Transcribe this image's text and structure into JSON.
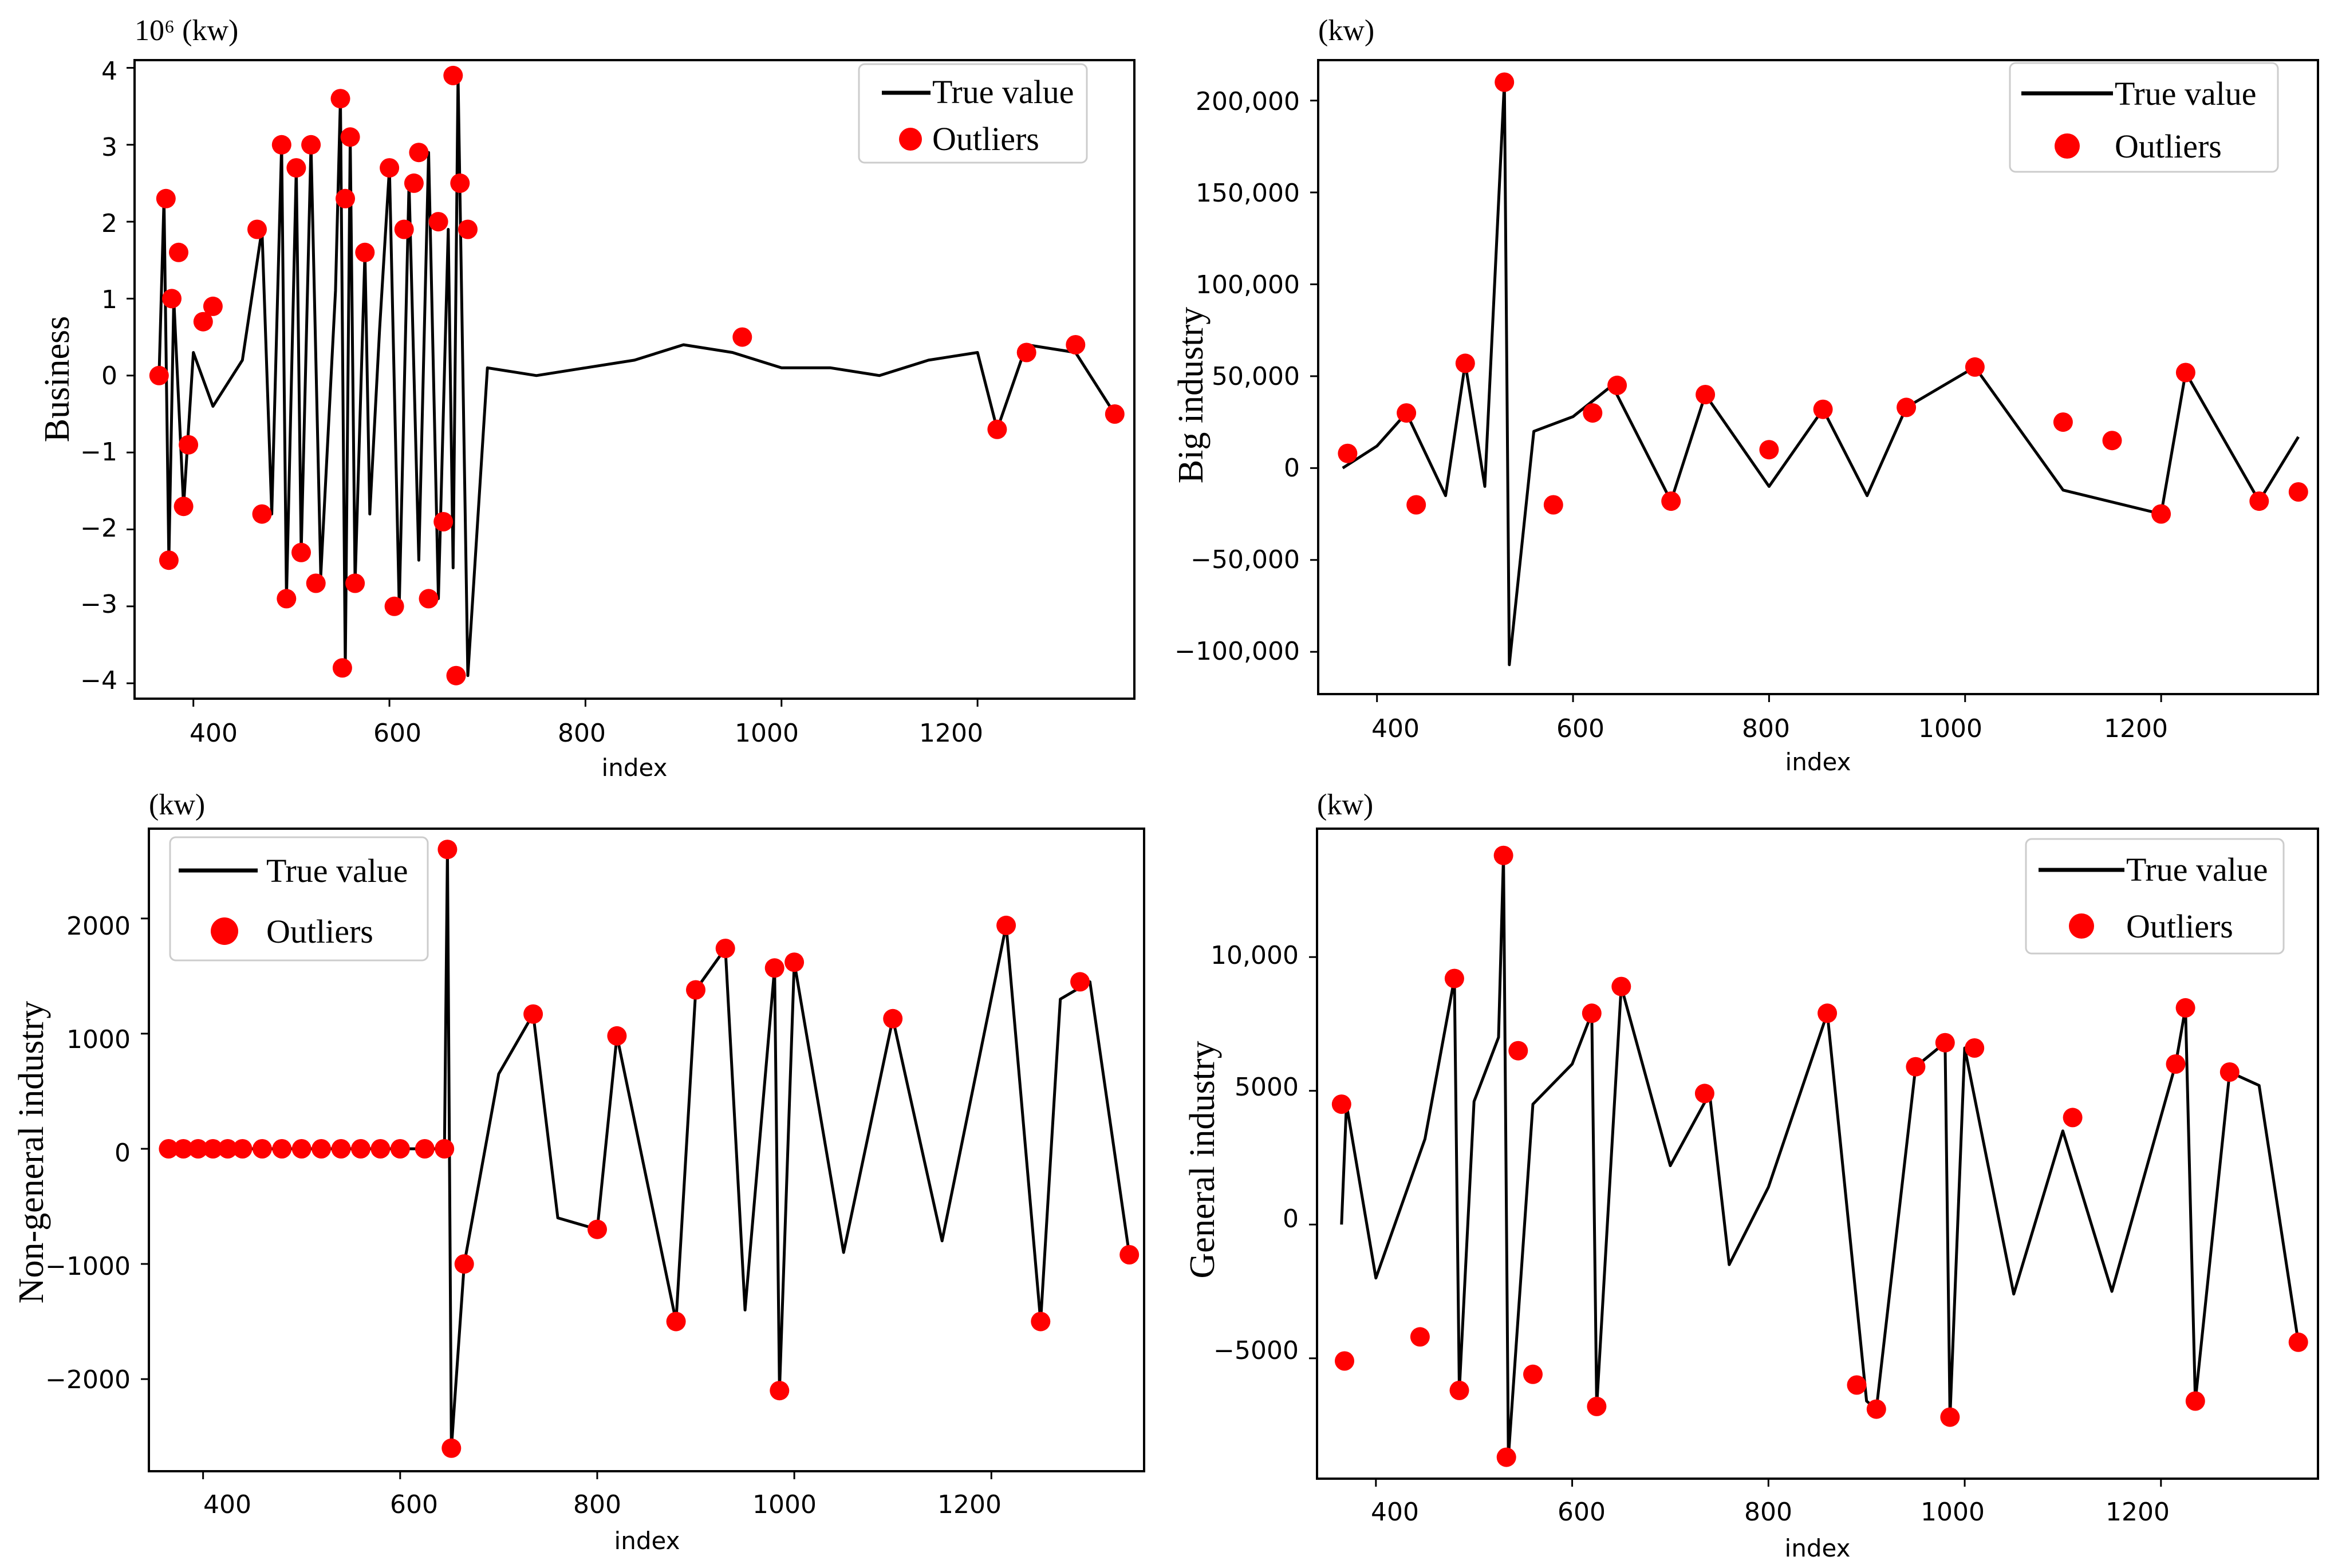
{
  "colors": {
    "line": "#000000",
    "outlier": "#ff0000",
    "axes": "#000000",
    "legend_border": "#cccccc"
  },
  "chart_data": [
    {
      "type": "line",
      "id": "business",
      "ylabel": "Business",
      "xlabel": "index",
      "unit_label": "10⁶ (kw)",
      "x_ticks": [
        "400",
        "600",
        "800",
        "1000",
        "1200"
      ],
      "y_ticks": [
        "−4",
        "−3",
        "−2",
        "−1",
        "0",
        "1",
        "2",
        "3",
        "4"
      ],
      "xlim": [
        340,
        1360
      ],
      "ylim": [
        -4.2,
        4.1
      ],
      "legend": {
        "line": "True value",
        "points": "Outliers",
        "position": "top-right"
      },
      "series": [
        {
          "name": "True value",
          "x": [
            365,
            370,
            375,
            380,
            390,
            400,
            420,
            450,
            470,
            480,
            490,
            495,
            505,
            510,
            520,
            530,
            545,
            550,
            555,
            560,
            565,
            575,
            580,
            590,
            600,
            610,
            620,
            630,
            640,
            650,
            660,
            665,
            670,
            680,
            700,
            750,
            800,
            850,
            900,
            950,
            1000,
            1050,
            1100,
            1150,
            1200,
            1220,
            1250,
            1300,
            1340
          ],
          "y": [
            0,
            2.3,
            -2.4,
            1.0,
            -1.7,
            0.3,
            -0.4,
            0.2,
            1.9,
            -1.8,
            3.0,
            -2.9,
            2.7,
            -2.3,
            3.0,
            -2.6,
            1.1,
            3.6,
            -3.8,
            3.1,
            -2.7,
            1.6,
            -1.8,
            0.6,
            2.7,
            -3.0,
            2.5,
            -2.4,
            2.9,
            -2.9,
            1.9,
            -2.5,
            3.9,
            -3.9,
            0.1,
            0.0,
            0.1,
            0.2,
            0.4,
            0.3,
            0.1,
            0.1,
            0.0,
            0.2,
            0.3,
            -0.7,
            0.4,
            0.3,
            -0.5
          ]
        },
        {
          "name": "Outliers",
          "x": [
            365,
            372,
            375,
            378,
            385,
            390,
            395,
            410,
            420,
            465,
            470,
            490,
            495,
            505,
            510,
            520,
            525,
            550,
            552,
            555,
            560,
            565,
            575,
            600,
            605,
            615,
            625,
            630,
            640,
            650,
            655,
            665,
            668,
            672,
            680,
            960,
            1220,
            1250,
            1300,
            1340
          ],
          "y": [
            0,
            2.3,
            -2.4,
            1.0,
            1.6,
            -1.7,
            -0.9,
            0.7,
            0.9,
            1.9,
            -1.8,
            3.0,
            -2.9,
            2.7,
            -2.3,
            3.0,
            -2.7,
            3.6,
            -3.8,
            2.3,
            3.1,
            -2.7,
            1.6,
            2.7,
            -3.0,
            1.9,
            2.5,
            2.9,
            -2.9,
            2.0,
            -1.9,
            3.9,
            -3.9,
            2.5,
            1.9,
            0.5,
            -0.7,
            0.3,
            0.4,
            -0.5
          ]
        }
      ]
    },
    {
      "type": "line",
      "id": "big-industry",
      "ylabel": "Big industry",
      "xlabel": "index",
      "unit_label": "(kw)",
      "x_ticks": [
        "400",
        "600",
        "800",
        "1000",
        "1200"
      ],
      "y_ticks": [
        "−100,000",
        "−50,000",
        "0",
        "50,000",
        "100,000",
        "150,000",
        "200,000"
      ],
      "xlim": [
        340,
        1360
      ],
      "ylim": [
        -123000,
        222000
      ],
      "legend": {
        "line": "True value",
        "points": "Outliers",
        "position": "top-right"
      },
      "series": [
        {
          "name": "True value",
          "x": [
            365,
            400,
            430,
            470,
            490,
            510,
            530,
            535,
            560,
            600,
            640,
            700,
            735,
            800,
            855,
            900,
            940,
            1010,
            1100,
            1200,
            1225,
            1300,
            1340
          ],
          "y": [
            0,
            12000,
            30000,
            -15000,
            57000,
            -10000,
            210000,
            -107000,
            20000,
            28000,
            45000,
            -18000,
            40000,
            -10000,
            32000,
            -15000,
            33000,
            55000,
            -12000,
            -25000,
            52000,
            -18000,
            17000
          ]
        },
        {
          "name": "Outliers",
          "x": [
            370,
            430,
            440,
            490,
            530,
            580,
            620,
            645,
            700,
            735,
            800,
            855,
            940,
            1010,
            1100,
            1150,
            1200,
            1225,
            1300,
            1340
          ],
          "y": [
            8000,
            30000,
            -20000,
            57000,
            210000,
            -20000,
            30000,
            45000,
            -18000,
            40000,
            10000,
            32000,
            33000,
            55000,
            25000,
            15000,
            -25000,
            52000,
            -18000,
            -13000
          ]
        }
      ]
    },
    {
      "type": "line",
      "id": "non-general-industry",
      "ylabel": "Non-general industry",
      "xlabel": "index",
      "unit_label": "(kw)",
      "x_ticks": [
        "400",
        "600",
        "800",
        "1000",
        "1200"
      ],
      "y_ticks": [
        "−2000",
        "−1000",
        "0",
        "1000",
        "2000"
      ],
      "xlim": [
        345,
        1355
      ],
      "ylim": [
        -2800,
        2780
      ],
      "legend": {
        "line": "True value",
        "points": "Outliers",
        "position": "top-left"
      },
      "series": [
        {
          "name": "True value",
          "x": [
            365,
            400,
            450,
            500,
            550,
            600,
            645,
            648,
            652,
            665,
            700,
            735,
            760,
            800,
            820,
            880,
            900,
            930,
            950,
            980,
            985,
            1000,
            1050,
            1100,
            1150,
            1215,
            1250,
            1270,
            1300,
            1340
          ],
          "y": [
            0,
            0,
            0,
            0,
            0,
            0,
            0,
            2600,
            -2600,
            -1000,
            650,
            1170,
            -600,
            -700,
            980,
            -1500,
            1380,
            1740,
            -1400,
            1570,
            -2100,
            1620,
            -900,
            1130,
            -800,
            1940,
            -1500,
            1300,
            1450,
            -920
          ]
        },
        {
          "name": "Outliers",
          "x": [
            365,
            380,
            395,
            410,
            425,
            440,
            460,
            480,
            500,
            520,
            540,
            560,
            580,
            600,
            625,
            645,
            648,
            652,
            665,
            735,
            800,
            820,
            880,
            900,
            930,
            980,
            985,
            1000,
            1100,
            1215,
            1250,
            1290,
            1340
          ],
          "y": [
            0,
            0,
            0,
            0,
            0,
            0,
            0,
            0,
            0,
            0,
            0,
            0,
            0,
            0,
            0,
            0,
            2600,
            -2600,
            -1000,
            1170,
            -700,
            980,
            -1500,
            1380,
            1740,
            1570,
            -2100,
            1620,
            1130,
            1940,
            -1500,
            1450,
            -920
          ]
        }
      ]
    },
    {
      "type": "line",
      "id": "general-industry",
      "ylabel": "General industry",
      "xlabel": "index",
      "unit_label": "(kw)",
      "x_ticks": [
        "400",
        "600",
        "800",
        "1000",
        "1200"
      ],
      "y_ticks": [
        "−5000",
        "0",
        "5000",
        "10,000"
      ],
      "xlim": [
        340,
        1360
      ],
      "ylim": [
        -9500,
        14800
      ],
      "legend": {
        "line": "True value",
        "points": "Outliers",
        "position": "top-right"
      },
      "series": [
        {
          "name": "True value",
          "x": [
            365,
            370,
            400,
            450,
            480,
            485,
            500,
            525,
            530,
            535,
            560,
            600,
            620,
            625,
            650,
            700,
            740,
            760,
            800,
            860,
            900,
            910,
            950,
            980,
            985,
            1000,
            1050,
            1100,
            1150,
            1215,
            1225,
            1235,
            1270,
            1300,
            1340
          ],
          "y": [
            0,
            4500,
            -2000,
            3200,
            9200,
            -6200,
            4600,
            7000,
            13800,
            -8700,
            4500,
            6000,
            7900,
            -6800,
            8900,
            2200,
            4900,
            -1500,
            1400,
            7900,
            -6600,
            -6900,
            5900,
            6800,
            -7200,
            6600,
            -2600,
            3500,
            -2500,
            6000,
            8100,
            -6600,
            5700,
            5200,
            -4400
          ]
        },
        {
          "name": "Outliers",
          "x": [
            365,
            368,
            445,
            480,
            485,
            530,
            533,
            545,
            560,
            620,
            625,
            650,
            735,
            860,
            890,
            910,
            950,
            980,
            985,
            1010,
            1110,
            1215,
            1225,
            1235,
            1270,
            1340
          ],
          "y": [
            4500,
            -5100,
            -4200,
            9200,
            -6200,
            13800,
            -8700,
            6500,
            -5600,
            7900,
            -6800,
            8900,
            4900,
            7900,
            -6000,
            -6900,
            5900,
            6800,
            -7200,
            6600,
            4000,
            6000,
            8100,
            -6600,
            5700,
            -4400
          ]
        }
      ]
    }
  ]
}
